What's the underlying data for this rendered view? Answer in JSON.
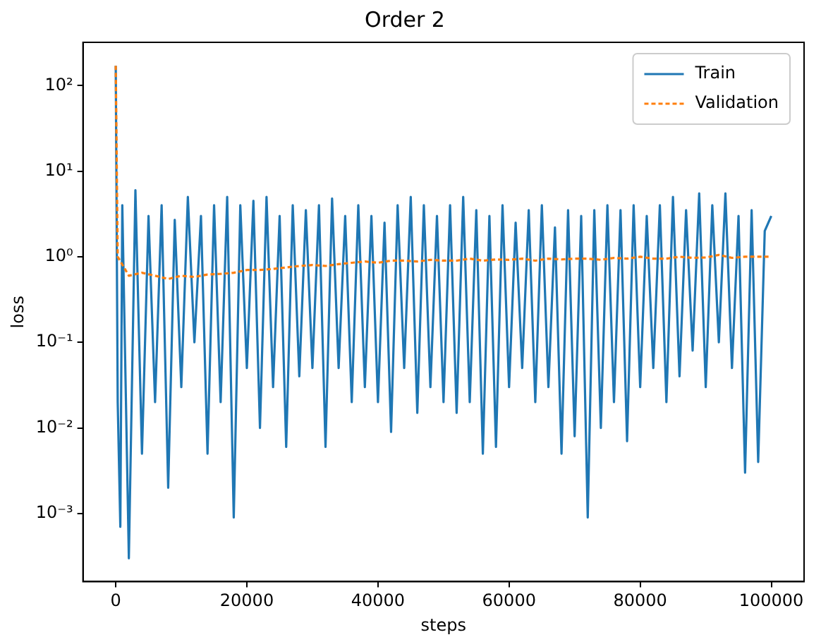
{
  "chart_data": {
    "type": "line",
    "title": "Order 2",
    "xlabel": "steps",
    "ylabel": "loss",
    "log": "y",
    "grid": false,
    "legend": "top right",
    "marker": "none",
    "xlim": [
      -5000,
      105000
    ],
    "xticks": [
      0,
      20000,
      40000,
      60000,
      80000,
      100000
    ],
    "ylim": [
      0.00016,
      320
    ],
    "yticks": [
      {
        "value": 0.001,
        "label": "10⁻³"
      },
      {
        "value": 0.01,
        "label": "10⁻²"
      },
      {
        "value": 0.1,
        "label": "10⁻¹"
      },
      {
        "value": 1,
        "label": "10⁰"
      },
      {
        "value": 10,
        "label": "10¹"
      },
      {
        "value": 100,
        "label": "10²"
      }
    ],
    "series": [
      {
        "name": "Train",
        "color": "#1f77b4",
        "line_style": "solid",
        "x": [
          0,
          300,
          700,
          1000,
          2000,
          3000,
          4000,
          5000,
          6000,
          7000,
          8000,
          9000,
          10000,
          11000,
          12000,
          13000,
          14000,
          15000,
          16000,
          17000,
          18000,
          19000,
          20000,
          21000,
          22000,
          23000,
          24000,
          25000,
          26000,
          27000,
          28000,
          29000,
          30000,
          31000,
          32000,
          33000,
          34000,
          35000,
          36000,
          37000,
          38000,
          39000,
          40000,
          41000,
          42000,
          43000,
          44000,
          45000,
          46000,
          47000,
          48000,
          49000,
          50000,
          51000,
          52000,
          53000,
          54000,
          55000,
          56000,
          57000,
          58000,
          59000,
          60000,
          61000,
          62000,
          63000,
          64000,
          65000,
          66000,
          67000,
          68000,
          69000,
          70000,
          71000,
          72000,
          73000,
          74000,
          75000,
          76000,
          77000,
          78000,
          79000,
          80000,
          81000,
          82000,
          83000,
          84000,
          85000,
          86000,
          87000,
          88000,
          89000,
          90000,
          91000,
          92000,
          93000,
          94000,
          95000,
          96000,
          97000,
          98000,
          99000,
          100000
        ],
        "values": [
          170,
          0.02,
          0.0007,
          4,
          0.0003,
          6,
          0.005,
          3,
          0.02,
          4,
          0.002,
          2.7,
          0.03,
          5,
          0.1,
          3,
          0.005,
          4,
          0.02,
          5,
          0.0009,
          4,
          0.05,
          4.5,
          0.01,
          5,
          0.03,
          3,
          0.006,
          4,
          0.04,
          3.5,
          0.05,
          4,
          0.006,
          4.8,
          0.05,
          3,
          0.02,
          4,
          0.03,
          3,
          0.02,
          2.5,
          0.009,
          4,
          0.05,
          5,
          0.015,
          4,
          0.03,
          3,
          0.02,
          4,
          0.015,
          5,
          0.02,
          3.5,
          0.005,
          3,
          0.006,
          4,
          0.03,
          2.5,
          0.05,
          3.5,
          0.02,
          4,
          0.03,
          2.2,
          0.005,
          3.5,
          0.008,
          3,
          0.0009,
          3.5,
          0.01,
          4,
          0.02,
          3.5,
          0.007,
          4,
          0.03,
          3,
          0.05,
          4,
          0.02,
          5,
          0.04,
          3.5,
          0.08,
          5.5,
          0.03,
          4,
          0.1,
          5.5,
          0.05,
          3,
          0.003,
          3.5,
          0.004,
          2,
          3
        ]
      },
      {
        "name": "Validation",
        "color": "#ff7f0e",
        "line_style": "dashed",
        "x": [
          0,
          300,
          2000,
          4000,
          6000,
          8000,
          10000,
          12000,
          14000,
          16000,
          18000,
          20000,
          22000,
          24000,
          26000,
          28000,
          30000,
          32000,
          34000,
          36000,
          38000,
          40000,
          42000,
          44000,
          46000,
          48000,
          50000,
          52000,
          54000,
          56000,
          58000,
          60000,
          62000,
          64000,
          66000,
          68000,
          70000,
          72000,
          74000,
          76000,
          78000,
          80000,
          82000,
          84000,
          86000,
          88000,
          90000,
          92000,
          94000,
          96000,
          98000,
          100000
        ],
        "values": [
          170,
          1,
          0.6,
          0.65,
          0.6,
          0.55,
          0.6,
          0.58,
          0.62,
          0.63,
          0.65,
          0.7,
          0.7,
          0.72,
          0.75,
          0.78,
          0.8,
          0.78,
          0.82,
          0.85,
          0.88,
          0.85,
          0.9,
          0.9,
          0.88,
          0.92,
          0.9,
          0.9,
          0.95,
          0.9,
          0.93,
          0.92,
          0.95,
          0.9,
          0.95,
          0.93,
          0.95,
          0.95,
          0.92,
          0.97,
          0.95,
          1,
          0.95,
          0.95,
          1,
          0.97,
          0.98,
          1.05,
          0.97,
          1,
          1,
          1
        ]
      }
    ]
  }
}
